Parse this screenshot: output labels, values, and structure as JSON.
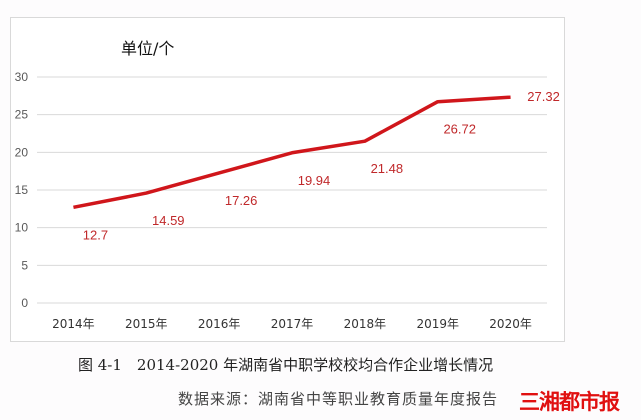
{
  "chart_data": {
    "type": "line",
    "unit_label": "单位/个",
    "categories": [
      "2014年",
      "2015年",
      "2016年",
      "2017年",
      "2018年",
      "2019年",
      "2020年"
    ],
    "values": [
      12.7,
      14.59,
      17.26,
      19.94,
      21.48,
      26.72,
      27.32
    ],
    "data_labels": [
      "12.7",
      "14.59",
      "17.26",
      "19.94",
      "21.48",
      "26.72",
      "27.32"
    ],
    "yticks": [
      "0",
      "5",
      "10",
      "15",
      "20",
      "25",
      "30"
    ],
    "ylim": [
      0,
      30
    ],
    "grid": true,
    "line_color": "#d0161b",
    "label_color": "#c0282a"
  },
  "caption": "图 4-1　2014-2020 年湖南省中职学校校均合作企业增长情况",
  "source": "数据来源：湖南省中等职业教育质量年度报告",
  "watermark": "三湘都市报"
}
